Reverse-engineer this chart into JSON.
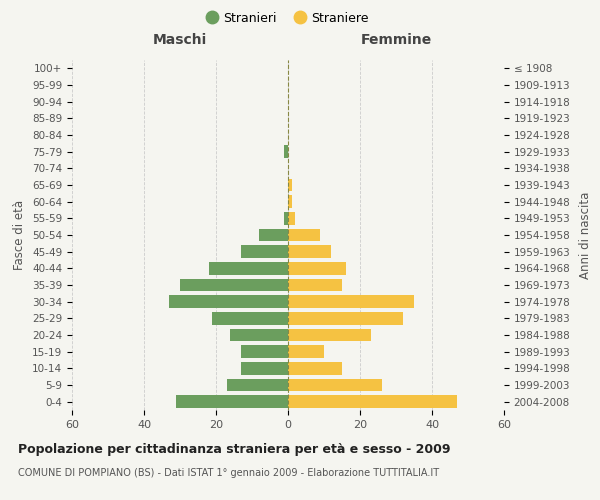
{
  "age_groups": [
    "0-4",
    "5-9",
    "10-14",
    "15-19",
    "20-24",
    "25-29",
    "30-34",
    "35-39",
    "40-44",
    "45-49",
    "50-54",
    "55-59",
    "60-64",
    "65-69",
    "70-74",
    "75-79",
    "80-84",
    "85-89",
    "90-94",
    "95-99",
    "100+"
  ],
  "birth_years": [
    "2004-2008",
    "1999-2003",
    "1994-1998",
    "1989-1993",
    "1984-1988",
    "1979-1983",
    "1974-1978",
    "1969-1973",
    "1964-1968",
    "1959-1963",
    "1954-1958",
    "1949-1953",
    "1944-1948",
    "1939-1943",
    "1934-1938",
    "1929-1933",
    "1924-1928",
    "1919-1923",
    "1914-1918",
    "1909-1913",
    "≤ 1908"
  ],
  "males": [
    31,
    17,
    13,
    13,
    16,
    21,
    33,
    30,
    22,
    13,
    8,
    1,
    0,
    0,
    0,
    1,
    0,
    0,
    0,
    0,
    0
  ],
  "females": [
    47,
    26,
    15,
    10,
    23,
    32,
    35,
    15,
    16,
    12,
    9,
    2,
    1,
    1,
    0,
    0,
    0,
    0,
    0,
    0,
    0
  ],
  "male_color": "#6b9e5e",
  "female_color": "#f5c242",
  "background_color": "#f5f5f0",
  "grid_color": "#cccccc",
  "title": "Popolazione per cittadinanza straniera per età e sesso - 2009",
  "subtitle": "COMUNE DI POMPIANO (BS) - Dati ISTAT 1° gennaio 2009 - Elaborazione TUTTITALIA.IT",
  "xlabel_left": "Maschi",
  "xlabel_right": "Femmine",
  "ylabel_left": "Fasce di età",
  "ylabel_right": "Anni di nascita",
  "xlim": 60,
  "legend_stranieri": "Stranieri",
  "legend_straniere": "Straniere"
}
